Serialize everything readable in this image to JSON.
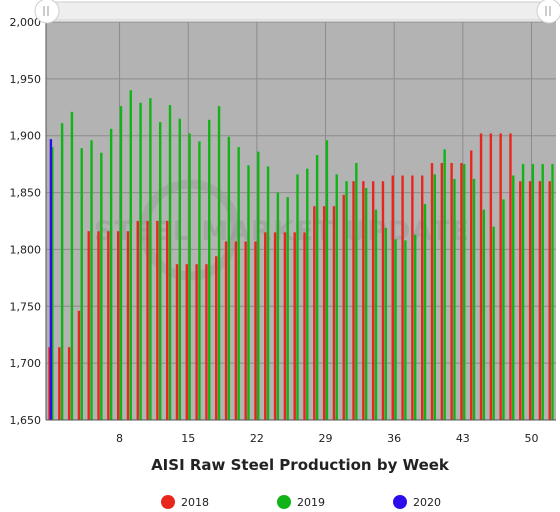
{
  "watermark": {
    "text": "STEEL MARKET UPDATE"
  },
  "chart_data": {
    "type": "bar",
    "title": "AISI Raw Steel Production by Week",
    "xlabel": "",
    "ylabel": "",
    "ylim": [
      1650,
      2000
    ],
    "yticks": [
      1650,
      1700,
      1750,
      1800,
      1850,
      1900,
      1950,
      2000
    ],
    "ytick_labels": [
      "1,650",
      "1,700",
      "1,750",
      "1,800",
      "1,850",
      "1,900",
      "1,950",
      "2,000"
    ],
    "xlim": [
      0.5,
      52.5
    ],
    "xticks": [
      8,
      15,
      22,
      29,
      36,
      43,
      50
    ],
    "xtick_labels": [
      "8",
      "15",
      "22",
      "29",
      "36",
      "43",
      "50"
    ],
    "grid": true,
    "legend_position": "bottom",
    "colors": {
      "plot_background": "#b3b3b3",
      "grid": "#8c8c8c",
      "axis": "#555555"
    },
    "series": [
      {
        "name": "2018",
        "color": "#e8261c",
        "x": [
          1,
          2,
          3,
          4,
          5,
          6,
          7,
          8,
          9,
          10,
          11,
          12,
          13,
          14,
          15,
          16,
          17,
          18,
          19,
          20,
          21,
          22,
          23,
          24,
          25,
          26,
          27,
          28,
          29,
          30,
          31,
          32,
          33,
          34,
          35,
          36,
          37,
          38,
          39,
          40,
          41,
          42,
          43,
          44,
          45,
          46,
          47,
          48,
          49,
          50,
          51,
          52
        ],
        "values": [
          1714,
          1714,
          1714,
          1746,
          1816,
          1816,
          1816,
          1816,
          1816,
          1825,
          1825,
          1825,
          1825,
          1787,
          1787,
          1787,
          1787,
          1794,
          1807,
          1807,
          1807,
          1807,
          1815,
          1815,
          1815,
          1815,
          1815,
          1838,
          1838,
          1838,
          1848,
          1860,
          1860,
          1860,
          1860,
          1865,
          1865,
          1865,
          1865,
          1876,
          1876,
          1876,
          1876,
          1887,
          1902,
          1902,
          1902,
          1902,
          1860,
          1860,
          1860,
          1860
        ]
      },
      {
        "name": "2019",
        "color": "#10b416",
        "x": [
          1,
          2,
          3,
          4,
          5,
          6,
          7,
          8,
          9,
          10,
          11,
          12,
          13,
          14,
          15,
          16,
          17,
          18,
          19,
          20,
          21,
          22,
          23,
          24,
          25,
          26,
          27,
          28,
          29,
          30,
          31,
          32,
          33,
          34,
          35,
          36,
          37,
          38,
          39,
          40,
          41,
          42,
          43,
          44,
          45,
          46,
          47,
          48,
          49,
          50,
          51,
          52
        ],
        "values": [
          1890,
          1911,
          1921,
          1889,
          1896,
          1885,
          1906,
          1926,
          1940,
          1929,
          1933,
          1912,
          1927,
          1915,
          1902,
          1895,
          1914,
          1926,
          1899,
          1890,
          1874,
          1886,
          1873,
          1850,
          1846,
          1866,
          1871,
          1883,
          1896,
          1866,
          1860,
          1876,
          1854,
          1835,
          1819,
          1809,
          1808,
          1813,
          1840,
          1866,
          1888,
          1862,
          1875,
          1862,
          1835,
          1820,
          1844,
          1865,
          1875,
          1875,
          1875,
          1875
        ]
      },
      {
        "name": "2020",
        "color": "#2a0dea",
        "x": [
          1
        ],
        "values": [
          1897
        ]
      }
    ]
  }
}
